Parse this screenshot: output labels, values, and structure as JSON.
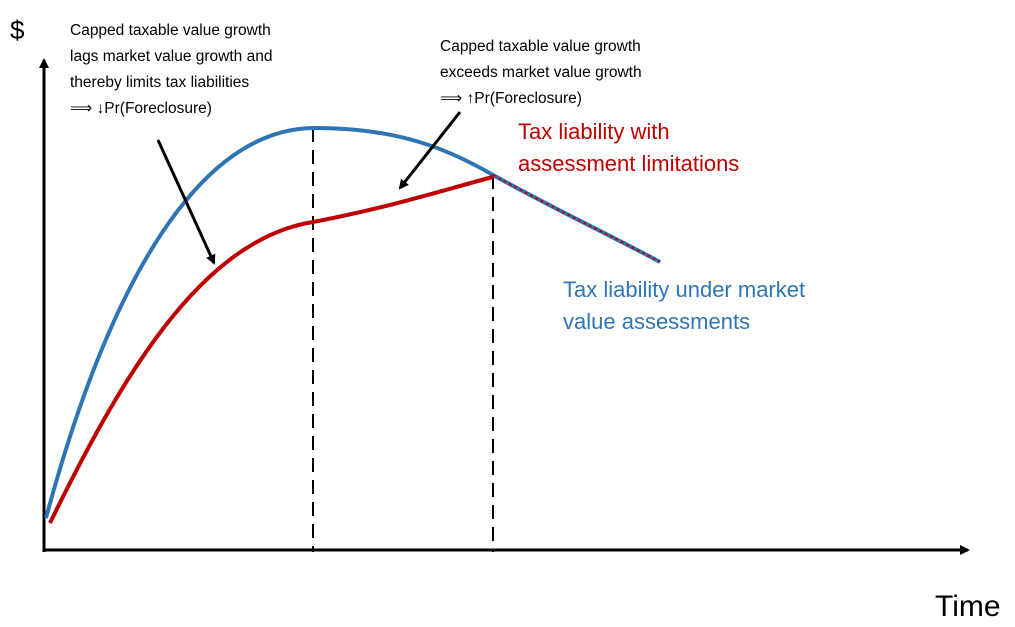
{
  "axes": {
    "y_label": "$",
    "x_label": "Time"
  },
  "annotations": [
    {
      "lines": [
        "Capped taxable value growth",
        "lags market value growth and",
        "thereby limits tax liabilities",
        "⟹ ↓Pr(Foreclosure)"
      ]
    },
    {
      "lines": [
        "Capped taxable value growth",
        "exceeds market value growth",
        "⟹ ↑Pr(Foreclosure)"
      ]
    }
  ],
  "curves": [
    {
      "label_lines": [
        "Tax liability with",
        "assessment limitations"
      ]
    },
    {
      "label_lines": [
        "Tax liability under market",
        "value assessments"
      ]
    }
  ]
}
